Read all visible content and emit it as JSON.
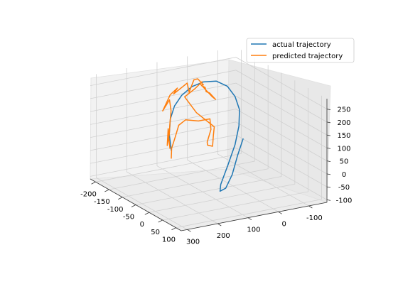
{
  "chart_data": {
    "type": "line",
    "projection": "3d",
    "grid": true,
    "legend_position": "top-right",
    "xlim": [
      -220,
      120
    ],
    "ylim": [
      -160,
      320
    ],
    "zlim": [
      -110,
      290
    ],
    "x_ticks": [
      "-200",
      "-150",
      "-100",
      "-50",
      "0",
      "50",
      "100"
    ],
    "y_ticks": [
      "-100",
      "0",
      "100",
      "200",
      "300"
    ],
    "z_ticks": [
      "-100",
      "-50",
      "0",
      "50",
      "100",
      "150",
      "200",
      "250"
    ],
    "x_tick_values": [
      -200,
      -150,
      -100,
      -50,
      0,
      50,
      100
    ],
    "y_tick_values": [
      -100,
      0,
      100,
      200,
      300
    ],
    "z_tick_values": [
      -100,
      -50,
      0,
      50,
      100,
      150,
      200,
      250
    ],
    "series": [
      {
        "name": "actual trajectory",
        "color": "#1f77b4",
        "points": [
          [
            60,
            300,
            160
          ],
          [
            30,
            280,
            200
          ],
          [
            0,
            250,
            235
          ],
          [
            -30,
            210,
            258
          ],
          [
            -60,
            160,
            270
          ],
          [
            -90,
            100,
            272
          ],
          [
            -115,
            40,
            262
          ],
          [
            -135,
            -20,
            240
          ],
          [
            -150,
            -70,
            200
          ],
          [
            -155,
            -100,
            150
          ],
          [
            -150,
            -110,
            100
          ],
          [
            -135,
            -95,
            50
          ],
          [
            -110,
            -60,
            0
          ],
          [
            -80,
            -10,
            -50
          ],
          [
            -50,
            40,
            -95
          ],
          [
            -30,
            60,
            -105
          ],
          [
            -20,
            50,
            -90
          ],
          [
            -30,
            20,
            -50
          ],
          [
            -55,
            -20,
            0
          ],
          [
            -80,
            -60,
            40
          ]
        ]
      },
      {
        "name": "predicted trajectory",
        "color": "#ff7f0e",
        "points": [
          [
            55,
            300,
            165
          ],
          [
            40,
            290,
            190
          ],
          [
            20,
            275,
            215
          ],
          [
            45,
            300,
            170
          ],
          [
            30,
            280,
            200
          ],
          [
            10,
            260,
            230
          ],
          [
            -20,
            230,
            250
          ],
          [
            -60,
            200,
            262
          ],
          [
            -40,
            240,
            240
          ],
          [
            -80,
            180,
            265
          ],
          [
            -110,
            130,
            262
          ],
          [
            -90,
            160,
            258
          ],
          [
            -130,
            80,
            258
          ],
          [
            -100,
            100,
            245
          ],
          [
            -150,
            40,
            250
          ],
          [
            -170,
            10,
            235
          ],
          [
            -160,
            0,
            215
          ],
          [
            -175,
            -10,
            205
          ],
          [
            -190,
            -20,
            190
          ],
          [
            -165,
            -10,
            200
          ],
          [
            -150,
            0,
            195
          ],
          [
            -165,
            -25,
            175
          ],
          [
            -160,
            -40,
            150
          ],
          [
            -140,
            -10,
            180
          ],
          [
            -150,
            20,
            230
          ],
          [
            -120,
            40,
            260
          ],
          [
            -90,
            90,
            262
          ],
          [
            -60,
            150,
            262
          ],
          [
            -50,
            120,
            200
          ],
          [
            -40,
            70,
            140
          ],
          [
            -55,
            60,
            95
          ],
          [
            -35,
            80,
            70
          ],
          [
            -20,
            110,
            90
          ],
          [
            -10,
            120,
            110
          ],
          [
            -30,
            90,
            140
          ],
          [
            -45,
            80,
            170
          ],
          [
            -20,
            140,
            190
          ],
          [
            0,
            200,
            220
          ],
          [
            20,
            240,
            220
          ],
          [
            40,
            270,
            190
          ],
          [
            50,
            290,
            160
          ],
          [
            60,
            300,
            130
          ]
        ]
      }
    ]
  }
}
